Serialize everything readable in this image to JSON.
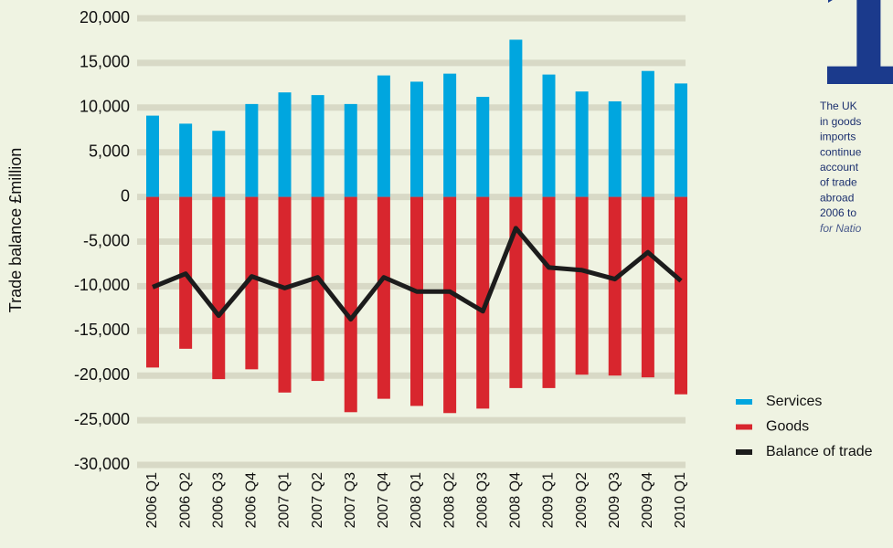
{
  "chart_data": {
    "type": "bar",
    "y_axis_label": "Trade balance £million",
    "categories": [
      "2006 Q1",
      "2006 Q2",
      "2006 Q3",
      "2006 Q4",
      "2007 Q1",
      "2007 Q2",
      "2007 Q3",
      "2007 Q4",
      "2008 Q1",
      "2008 Q2",
      "2008 Q3",
      "2008 Q4",
      "2009 Q1",
      "2009 Q2",
      "2009 Q3",
      "2009 Q4",
      "2010 Q1"
    ],
    "series": [
      {
        "name": "Services",
        "color": "#00a6df",
        "values": [
          9100,
          8200,
          7400,
          10400,
          11700,
          11400,
          10400,
          13600,
          12900,
          13800,
          11200,
          17600,
          13700,
          11800,
          10700,
          14100,
          12700
        ]
      },
      {
        "name": "Goods",
        "color": "#d8262e",
        "values": [
          -19100,
          -17000,
          -20400,
          -19300,
          -21900,
          -20600,
          -24100,
          -22600,
          -23400,
          -24200,
          -23700,
          -21400,
          -21400,
          -19900,
          -20000,
          -20200,
          -22100
        ]
      },
      {
        "name": "Balance of trade",
        "color": "#1c1c1c",
        "type": "line",
        "values": [
          -10100,
          -8600,
          -13300,
          -8900,
          -10200,
          -9000,
          -13700,
          -9000,
          -10600,
          -10600,
          -12800,
          -3500,
          -7900,
          -8200,
          -9200,
          -6200,
          -9400
        ]
      }
    ],
    "ylim": [
      -30000,
      20000
    ],
    "yticks": [
      {
        "value": -30000,
        "label": "-30,000"
      },
      {
        "value": -25000,
        "label": "-25,000"
      },
      {
        "value": -20000,
        "label": "-20,000"
      },
      {
        "value": -15000,
        "label": "-15,000"
      },
      {
        "value": -10000,
        "label": "-10,000"
      },
      {
        "value": -5000,
        "label": "-5,000"
      },
      0,
      {
        "value": 5000,
        "label": "5,000"
      },
      {
        "value": 10000,
        "label": "10,000"
      },
      {
        "value": 15000,
        "label": "15,000"
      },
      {
        "value": 20000,
        "label": "20,000"
      }
    ],
    "grid": true,
    "legend": "bottom-right",
    "annotation_number": "1",
    "annotation_lines": [
      "The UK",
      "in goods",
      "imports",
      "continue",
      "account",
      "of trade",
      "abroad",
      "2006 to",
      "for Natio"
    ]
  }
}
